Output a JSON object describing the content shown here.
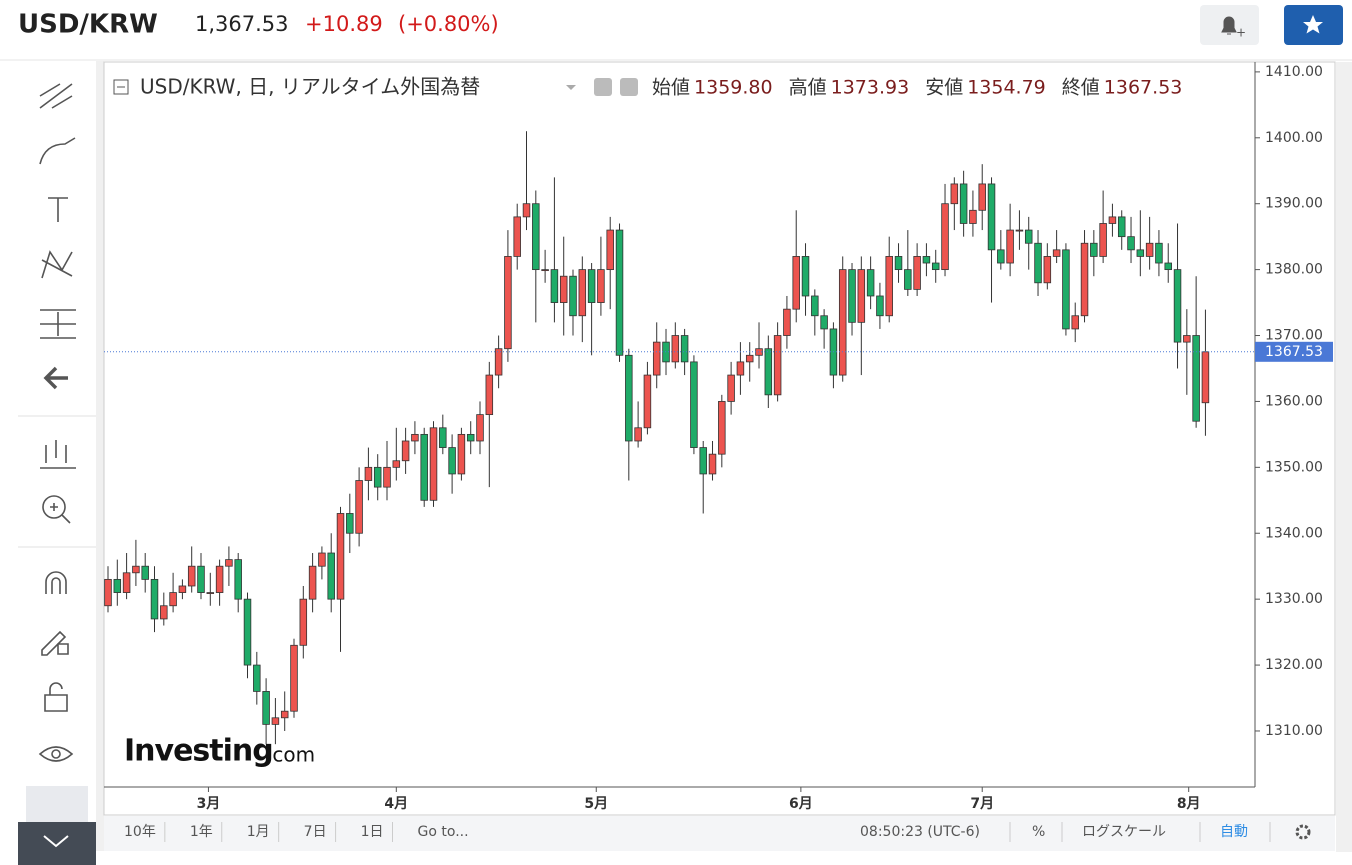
{
  "header": {
    "symbol": "USD/KRW",
    "price": "1,367.53",
    "change": "+10.89",
    "change_pct": "(+0.80%)"
  },
  "chart_data": {
    "type": "candlestick",
    "title": "USD/KRW, 日, リアルタイム外国為替",
    "ohlc_legend": [
      {
        "label": "始値",
        "value": "1359.80"
      },
      {
        "label": "高値",
        "value": "1373.93"
      },
      {
        "label": "安値",
        "value": "1354.79"
      },
      {
        "label": "終値",
        "value": "1367.53"
      }
    ],
    "up_color": "#ec544f",
    "down_color": "#1fab68",
    "open": [
      1329,
      1333,
      1331,
      1334,
      1335,
      1333,
      1327,
      1329,
      1331,
      1332,
      1335,
      1331,
      1331,
      1335,
      1336,
      1330,
      1320,
      1316,
      1311,
      1312,
      1313,
      1323,
      1330,
      1335,
      1337,
      1330,
      1343,
      1340,
      1348,
      1350,
      1347,
      1350,
      1351,
      1354,
      1355,
      1345,
      1356,
      1353,
      1349,
      1355,
      1354,
      1358,
      1364,
      1368,
      1382,
      1388,
      1390,
      1380,
      1380,
      1375,
      1379,
      1373,
      1380,
      1375,
      1380,
      1386,
      1367,
      1354,
      1356,
      1364,
      1369,
      1366,
      1370,
      1366,
      1353,
      1349,
      1352,
      1360,
      1364,
      1366,
      1367,
      1368,
      1361,
      1370,
      1374,
      1382,
      1376,
      1373,
      1371,
      1364,
      1380,
      1372,
      1380,
      1376,
      1373,
      1382,
      1380,
      1377,
      1382,
      1381,
      1380,
      1390,
      1393,
      1387,
      1389,
      1393,
      1383,
      1381,
      1386,
      1386,
      1384,
      1378,
      1382,
      1383,
      1371,
      1373,
      1384,
      1382,
      1387,
      1388,
      1385,
      1383,
      1382,
      1384,
      1381,
      1380,
      1369,
      1370,
      1359.8
    ],
    "high": [
      1335,
      1336,
      1337,
      1339,
      1337,
      1335,
      1331,
      1334,
      1333,
      1338,
      1337,
      1334,
      1336,
      1338,
      1337,
      1331,
      1322,
      1318,
      1315,
      1316,
      1324,
      1332,
      1337,
      1338,
      1340,
      1344,
      1346,
      1350,
      1353,
      1352,
      1354,
      1356,
      1356,
      1357,
      1356,
      1357,
      1358,
      1355,
      1356,
      1357,
      1360,
      1366,
      1370,
      1386,
      1390,
      1401,
      1392,
      1383,
      1394,
      1385,
      1380,
      1382,
      1381,
      1385,
      1388,
      1387,
      1368,
      1360,
      1366,
      1372,
      1371,
      1372,
      1371,
      1367,
      1354,
      1354,
      1361,
      1366,
      1369,
      1369,
      1372,
      1370,
      1372,
      1376,
      1389,
      1384,
      1377,
      1374,
      1372,
      1382,
      1381,
      1382,
      1382,
      1378,
      1385,
      1384,
      1386,
      1384,
      1384,
      1383,
      1393,
      1394,
      1395,
      1392,
      1396,
      1394,
      1386,
      1390,
      1389,
      1388,
      1386,
      1384,
      1386,
      1384,
      1375,
      1386,
      1386,
      1392,
      1390,
      1389,
      1388,
      1389,
      1388,
      1386,
      1384,
      1387,
      1374,
      1379,
      1373.93
    ],
    "low": [
      1328,
      1329,
      1330,
      1332,
      1331,
      1325,
      1326,
      1328,
      1330,
      1331,
      1330,
      1329,
      1329,
      1332,
      1328,
      1318,
      1314,
      1308,
      1308,
      1310,
      1312,
      1321,
      1328,
      1333,
      1328,
      1322,
      1337,
      1338,
      1345,
      1345,
      1345,
      1348,
      1349,
      1352,
      1344,
      1344,
      1352,
      1346,
      1348,
      1352,
      1352,
      1347,
      1362,
      1366,
      1380,
      1386,
      1372,
      1378,
      1372,
      1370,
      1370,
      1369,
      1367,
      1373,
      1374,
      1366,
      1348,
      1353,
      1355,
      1362,
      1364,
      1365,
      1364,
      1352,
      1343,
      1348,
      1350,
      1358,
      1361,
      1363,
      1365,
      1359,
      1360,
      1368,
      1372,
      1373,
      1370,
      1368,
      1362,
      1363,
      1370,
      1364,
      1374,
      1371,
      1372,
      1378,
      1376,
      1376,
      1379,
      1378,
      1379,
      1386,
      1385,
      1385,
      1386,
      1375,
      1380,
      1379,
      1383,
      1380,
      1376,
      1377,
      1381,
      1370,
      1369,
      1372,
      1379,
      1381,
      1385,
      1383,
      1381,
      1379,
      1380,
      1379,
      1378,
      1365,
      1361,
      1356,
      1354.79
    ],
    "close": [
      1333,
      1331,
      1334,
      1335,
      1333,
      1327,
      1329,
      1331,
      1332,
      1335,
      1331,
      1331,
      1335,
      1336,
      1330,
      1320,
      1316,
      1311,
      1312,
      1313,
      1323,
      1330,
      1335,
      1337,
      1330,
      1343,
      1340,
      1348,
      1350,
      1347,
      1350,
      1351,
      1354,
      1355,
      1345,
      1356,
      1353,
      1349,
      1355,
      1354,
      1358,
      1364,
      1368,
      1382,
      1388,
      1390,
      1380,
      1380,
      1375,
      1379,
      1373,
      1380,
      1375,
      1380,
      1386,
      1367,
      1354,
      1356,
      1364,
      1369,
      1366,
      1370,
      1366,
      1353,
      1349,
      1352,
      1360,
      1364,
      1366,
      1367,
      1368,
      1361,
      1370,
      1374,
      1382,
      1376,
      1373,
      1371,
      1364,
      1380,
      1372,
      1380,
      1376,
      1373,
      1382,
      1380,
      1377,
      1382,
      1381,
      1380,
      1390,
      1393,
      1387,
      1389,
      1393,
      1383,
      1381,
      1386,
      1386,
      1384,
      1378,
      1382,
      1383,
      1371,
      1373,
      1384,
      1382,
      1387,
      1388,
      1385,
      1383,
      1382,
      1384,
      1381,
      1380,
      1369,
      1370,
      1357,
      1367.53
    ],
    "last_price": 1367.53,
    "last_color": "#4a78d6",
    "ylim": [
      1301.5,
      1411.5
    ],
    "yticks": [
      {
        "value": 1310,
        "label": "1310.00"
      },
      {
        "value": 1320,
        "label": "1320.00"
      },
      {
        "value": 1330,
        "label": "1330.00"
      },
      {
        "value": 1340,
        "label": "1340.00"
      },
      {
        "value": 1350,
        "label": "1350.00"
      },
      {
        "value": 1360,
        "label": "1360.00"
      },
      {
        "value": 1370,
        "label": "1370.00"
      },
      {
        "value": 1380,
        "label": "1380.00"
      },
      {
        "value": 1390,
        "label": "1390.00"
      },
      {
        "value": 1400,
        "label": "1400.00"
      },
      {
        "value": 1410,
        "label": "1410.00"
      }
    ],
    "xlim": [
      -0.43,
      123.33
    ],
    "xticks": [
      {
        "value": 10.8,
        "label": "3月"
      },
      {
        "value": 31,
        "label": "4月"
      },
      {
        "value": 52.5,
        "label": "5月"
      },
      {
        "value": 74.5,
        "label": "6月"
      },
      {
        "value": 94,
        "label": "7月"
      },
      {
        "value": 116.2,
        "label": "8月"
      }
    ]
  },
  "toolbar": {
    "ranges": [
      "10年",
      "1年",
      "1月",
      "7日",
      "1日"
    ],
    "goto": "Go to...",
    "time": "08:50:23 (UTC-6)",
    "percent": "%",
    "log": "ログスケール",
    "auto": "自動"
  },
  "logo": {
    "main": "Investing",
    "suffix": ".com"
  }
}
